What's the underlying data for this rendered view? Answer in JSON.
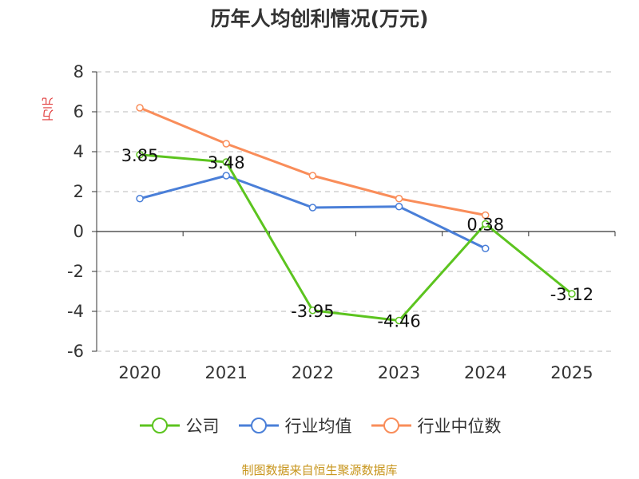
{
  "chart_data": {
    "type": "line",
    "title": "历年人均创利情况(万元)",
    "ylabel": "万元",
    "xlabel": "",
    "categories": [
      "2020",
      "2021",
      "2022",
      "2023",
      "2024",
      "2025"
    ],
    "ylim": [
      -6,
      8
    ],
    "yticks": [
      8,
      6,
      4,
      2,
      0,
      -2,
      -4,
      -6
    ],
    "ytick_labels": [
      "8",
      "6",
      "4",
      "2",
      "0",
      "-2",
      "-4",
      "-6"
    ],
    "grid": true,
    "legend_position": "bottom",
    "series": [
      {
        "name": "公司",
        "color": "#5cc41f",
        "values": [
          3.85,
          3.48,
          -3.95,
          -4.46,
          0.38,
          -3.12
        ],
        "labels": [
          "3.85",
          "3.48",
          "-3.95",
          "-4.46",
          "0.38",
          "-3.12"
        ]
      },
      {
        "name": "行业均值",
        "color": "#4a7fd8",
        "values": [
          1.65,
          2.8,
          1.2,
          1.25,
          -0.85,
          null
        ]
      },
      {
        "name": "行业中位数",
        "color": "#f98d5a",
        "values": [
          6.2,
          4.4,
          2.8,
          1.65,
          0.82,
          null
        ]
      }
    ]
  },
  "source_text": "制图数据来自恒生聚源数据库"
}
